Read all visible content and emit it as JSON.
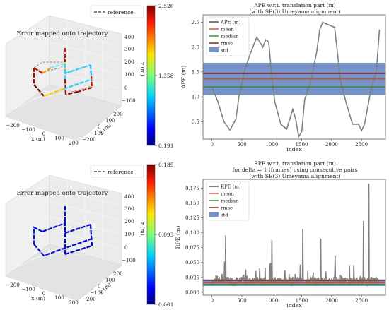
{
  "chart_data": [
    {
      "type": "line",
      "panel": "3d-trajectory",
      "title": "Error mapped onto trajectory",
      "legend": {
        "label": "reference",
        "placement": "top-right"
      },
      "xlabel": "x (m)",
      "ylabel": "y (m)",
      "zlabel": "z (m)",
      "x_ticks": [
        "−200",
        "−100",
        "0",
        "100",
        "200"
      ],
      "y_ticks": [
        "−200",
        "−100",
        "0",
        "100",
        "200"
      ],
      "z_ticks": [
        "−100",
        "0",
        "100",
        "200",
        "300",
        "400"
      ],
      "colorbar": {
        "min": 0.191,
        "mid": 1.358,
        "max": 2.526,
        "labels": [
          "2.526",
          "1.358",
          "0.191"
        ],
        "colormap": "jet"
      }
    },
    {
      "type": "line",
      "panel": "ape",
      "title": "APE w.r.t. translation part (m)",
      "subtitle": "(with SE(3) Umeyama alignment)",
      "xlabel": "index",
      "ylabel": "APE (m)",
      "xlim": [
        -150,
        2900
      ],
      "ylim": [
        0.15,
        2.65
      ],
      "x_ticks": [
        0,
        500,
        1000,
        1500,
        2000,
        2500
      ],
      "x_tick_labels": [
        "0",
        "500",
        "1000",
        "1500",
        "2000",
        "2500"
      ],
      "y_ticks": [
        0.5,
        1.0,
        1.5,
        2.0,
        2.5
      ],
      "y_tick_labels": [
        "0.5",
        "1.0",
        "1.5",
        "2.0",
        "2.5"
      ],
      "legend_entries": [
        "APE (m)",
        "mean",
        "median",
        "rmse",
        "std"
      ],
      "colors": {
        "series": "#808080",
        "mean": "#d6482a",
        "median": "#2a8a2a",
        "rmse": "#8b1a1a",
        "std": "#4a6fb5"
      },
      "stats": {
        "mean": 1.36,
        "median": 1.2,
        "rmse": 1.47,
        "std": 0.65
      },
      "series": [
        {
          "name": "APE (m)",
          "x": [
            0,
            100,
            200,
            300,
            400,
            450,
            550,
            650,
            750,
            850,
            900,
            950,
            1000,
            1050,
            1150,
            1250,
            1350,
            1400,
            1450,
            1500,
            1550,
            1650,
            1750,
            1800,
            1850,
            1950,
            2050,
            2150,
            2250,
            2350,
            2450,
            2500,
            2550,
            2650,
            2750,
            2800
          ],
          "values": [
            1.2,
            0.9,
            0.5,
            0.33,
            0.55,
            1.0,
            1.55,
            1.9,
            2.2,
            2.0,
            2.15,
            2.1,
            1.4,
            0.9,
            0.45,
            0.35,
            0.75,
            0.55,
            0.2,
            0.3,
            0.95,
            1.3,
            1.9,
            2.35,
            2.5,
            2.45,
            2.4,
            1.3,
            0.85,
            0.45,
            0.45,
            0.32,
            0.45,
            1.1,
            1.55,
            2.35
          ]
        }
      ]
    },
    {
      "type": "line",
      "panel": "3d-trajectory",
      "title": "Error mapped onto trajectory",
      "legend": {
        "label": "reference",
        "placement": "top-right"
      },
      "xlabel": "x (m)",
      "ylabel": "y (m)",
      "zlabel": "z (m)",
      "x_ticks": [
        "−200",
        "−100",
        "0",
        "100",
        "200"
      ],
      "y_ticks": [
        "−200",
        "−100",
        "0",
        "100",
        "200"
      ],
      "z_ticks": [
        "−100",
        "0",
        "100",
        "200",
        "300",
        "400"
      ],
      "colorbar": {
        "min": 0.001,
        "mid": 0.093,
        "max": 0.185,
        "labels": [
          "0.185",
          "0.093",
          "0.001"
        ],
        "colormap": "jet"
      }
    },
    {
      "type": "line",
      "panel": "rpe",
      "title": "RPE w.r.t. translation part (m)",
      "subtitle": "for delta = 1 (frames) using consecutive pairs",
      "subtitle2": "(with SE(3) Umeyama alignment)",
      "xlabel": "index",
      "ylabel": "RPE (m)",
      "xlim": [
        -150,
        2900
      ],
      "ylim": [
        -0.005,
        0.19
      ],
      "x_ticks": [
        0,
        500,
        1000,
        1500,
        2000,
        2500
      ],
      "x_tick_labels": [
        "0",
        "500",
        "1000",
        "1500",
        "2000",
        "2500"
      ],
      "y_ticks": [
        0.0,
        0.025,
        0.05,
        0.075,
        0.1,
        0.125,
        0.15,
        0.175
      ],
      "y_tick_labels": [
        "0.000",
        "0.025",
        "0.050",
        "0.075",
        "0.100",
        "0.125",
        "0.150",
        "0.175"
      ],
      "legend_entries": [
        "RPE (m)",
        "mean",
        "median",
        "rmse",
        "std"
      ],
      "colors": {
        "series": "#808080",
        "mean": "#d6482a",
        "median": "#2a8a2a",
        "rmse": "#8b1a1a",
        "std": "#4a6fb5"
      },
      "stats": {
        "mean": 0.016,
        "median": 0.013,
        "rmse": 0.02,
        "std": 0.011
      },
      "peaks": [
        [
          230,
          0.096
        ],
        [
          1000,
          0.088
        ],
        [
          1520,
          0.106
        ],
        [
          1820,
          0.09
        ],
        [
          2060,
          0.062
        ],
        [
          2530,
          0.12
        ],
        [
          2620,
          0.183
        ]
      ]
    }
  ]
}
